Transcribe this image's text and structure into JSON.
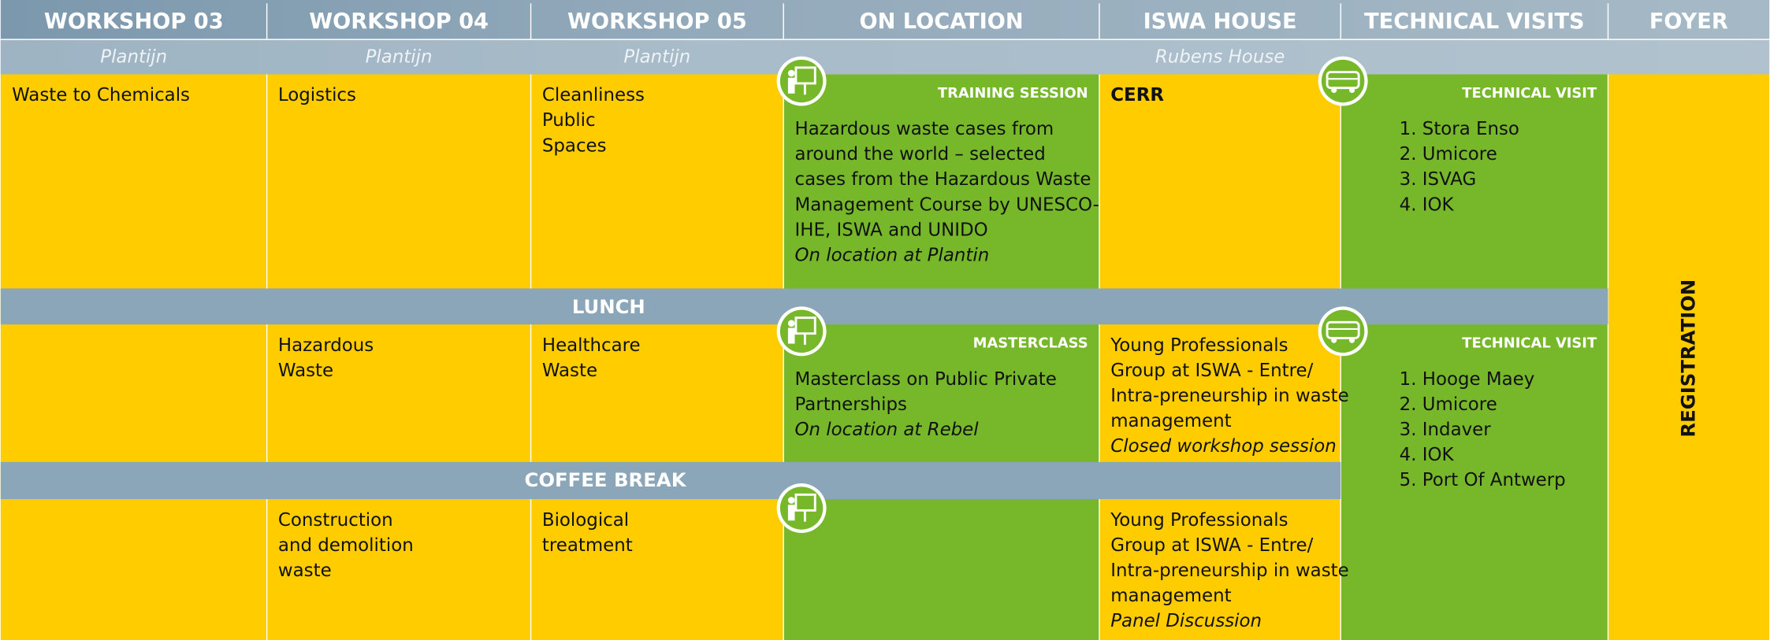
{
  "columns": [
    {
      "name": "WORKSHOP 03",
      "location": "Plantijn"
    },
    {
      "name": "WORKSHOP 04",
      "location": "Plantijn"
    },
    {
      "name": "WORKSHOP 05",
      "location": "Plantijn"
    },
    {
      "name": "ON LOCATION"
    },
    {
      "name": "ISWA HOUSE",
      "location": "Rubens House"
    },
    {
      "name": "TECHNICAL VISITS"
    },
    {
      "name": "FOYER"
    }
  ],
  "breaks": [
    "LUNCH",
    "COFFEE BREAK"
  ],
  "rows": [
    [
      {
        "lines": [
          "Waste to Chemicals"
        ]
      },
      {
        "lines": [
          "Logistics"
        ]
      },
      {
        "lines": [
          "Cleanliness",
          "Public",
          "Spaces"
        ]
      },
      {
        "tag": "TRAINING SESSION",
        "lines": [
          "Hazardous waste cases from",
          "around the world – selected",
          "cases from the Hazardous Waste",
          "Management Course by UNESCO-",
          "IHE, ISWA and UNIDO"
        ],
        "note": "On location at Plantin"
      },
      {
        "title": "CERR"
      },
      {
        "tag": "TECHNICAL VISIT",
        "items": [
          "1. Stora Enso",
          "2. Umicore",
          "3. ISVAG",
          "4. IOK"
        ]
      }
    ],
    [
      {},
      {
        "lines": [
          "Hazardous",
          "Waste"
        ]
      },
      {
        "lines": [
          "Healthcare",
          "Waste"
        ]
      },
      {
        "tag": "MASTERCLASS",
        "lines": [
          "Masterclass on Public Private",
          "Partnerships"
        ],
        "note": "On location at Rebel"
      },
      {
        "lines": [
          "Young Professionals",
          "Group at ISWA - Entre/",
          "Intra-preneurship in waste",
          "management"
        ],
        "note": "Closed workshop session"
      },
      {
        "tag": "TECHNICAL VISIT",
        "items": [
          "1. Hooge Maey",
          "2. Umicore",
          "3. Indaver",
          "4. IOK",
          "5. Port Of Antwerp"
        ]
      }
    ],
    [
      {},
      {
        "lines": [
          "Construction",
          "and demolition",
          "waste"
        ]
      },
      {
        "lines": [
          "Biological",
          "treatment"
        ]
      },
      {},
      {
        "lines": [
          "Young Professionals",
          "Group at ISWA - Entre/",
          "Intra-preneurship in waste",
          "management"
        ],
        "note": "Panel Discussion"
      }
    ]
  ],
  "foyer": "REGISTRATION"
}
